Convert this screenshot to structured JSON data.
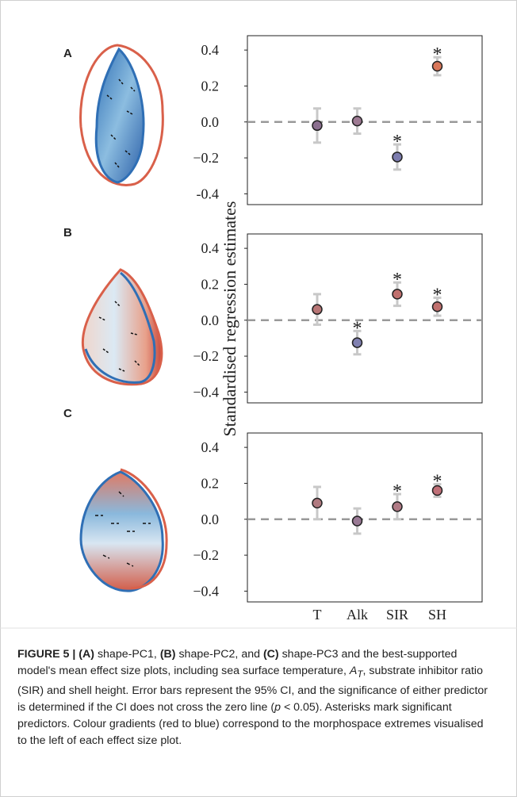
{
  "ylabel": "Standardised regression estimates",
  "panel_labels": [
    "A",
    "B",
    "C"
  ],
  "chart_data": [
    {
      "type": "errorbar",
      "values": [
        -0.02,
        0.005,
        -0.195,
        0.31
      ],
      "errors": [
        0.095,
        0.07,
        0.07,
        0.05
      ],
      "colors": [
        "#8b6f8f",
        "#9e7a93",
        "#7c7cae",
        "#d9775a"
      ],
      "error_color": "#c8c8c8",
      "ylim": [
        -0.46,
        0.48
      ],
      "yticks": [
        -0.4,
        {
          "value": -0.2,
          "label": "−0.2"
        },
        {
          "value": 0,
          "label": "0.0"
        },
        0.2,
        0.4
      ],
      "annotations": [
        {
          "x": "SIR",
          "text": "*"
        },
        {
          "x": "SH",
          "text": "*"
        }
      ]
    },
    {
      "type": "errorbar",
      "values": [
        0.06,
        -0.125,
        0.145,
        0.075
      ],
      "errors": [
        0.085,
        0.065,
        0.065,
        0.05
      ],
      "colors": [
        "#b87676",
        "#8080b0",
        "#c0706e",
        "#c0706e"
      ],
      "error_color": "#c8c8c8",
      "ylim": [
        -0.46,
        0.48
      ],
      "yticks": [
        {
          "value": -0.4,
          "label": "−0.4"
        },
        {
          "value": -0.2,
          "label": "−0.2"
        },
        {
          "value": 0,
          "label": "0.0"
        },
        0.2,
        0.4
      ],
      "annotations": [
        {
          "x": "Alk",
          "text": "*"
        },
        {
          "x": "SIR",
          "text": "*"
        },
        {
          "x": "SH",
          "text": "*"
        }
      ]
    },
    {
      "type": "errorbar",
      "values": [
        0.09,
        -0.01,
        0.07,
        0.16
      ],
      "errors": [
        0.09,
        0.07,
        0.07,
        0.035
      ],
      "colors": [
        "#b07a80",
        "#9a7a95",
        "#b07a85",
        "#c07078"
      ],
      "error_color": "#c8c8c8",
      "ylim": [
        -0.46,
        0.48
      ],
      "yticks": [
        {
          "value": -0.4,
          "label": "−0.4"
        },
        {
          "value": -0.2,
          "label": "−0.2"
        },
        {
          "value": 0,
          "label": "0.0"
        },
        0.2,
        0.4
      ],
      "categories": [
        "T",
        "Alk",
        "SIR",
        "SH"
      ],
      "annotations": [
        {
          "x": "SIR",
          "text": "*"
        },
        {
          "x": "SH",
          "text": "*"
        }
      ]
    }
  ],
  "caption": [
    "FIGURE 5 | ",
    "(A)",
    " shape-PC1, ",
    "(B)",
    " shape-PC2, and ",
    "(C)",
    " shape-PC3 and the best-supported model's mean effect size plots, including sea surface temperature, ",
    "A",
    "T",
    ", substrate inhibitor ratio (SIR) and shell height. Error bars represent the 95% CI, and the significance of either predictor is determined if the CI does not cross the zero line (",
    "p",
    " < 0.05). Asterisks mark significant predictors. Colour gradients (red to blue) correspond to the morphospace extremes visualised to the left of each effect size plot."
  ]
}
